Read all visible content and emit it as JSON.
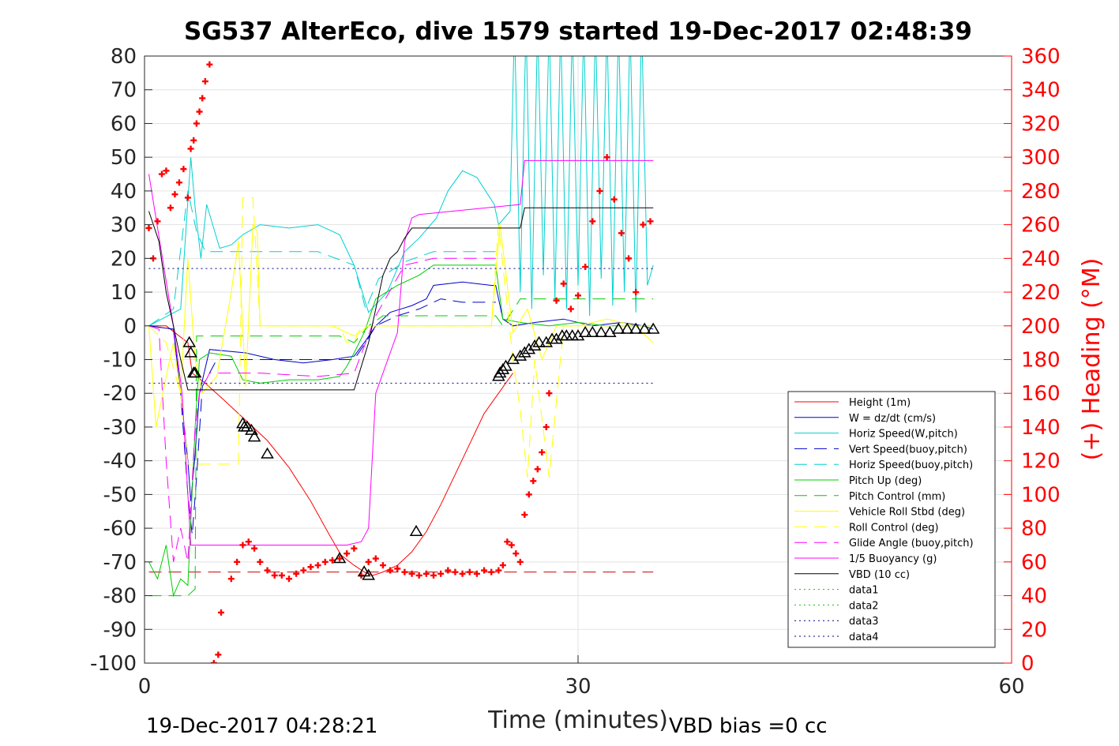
{
  "chart_data": {
    "type": "line",
    "title": "SG537 AlterEco, dive 1579 started 19-Dec-2017 02:48:39",
    "xlabel": "Time (minutes)",
    "ylabel": "",
    "y2label": "(+) Heading (°M)",
    "xlim": [
      0,
      60
    ],
    "ylim": [
      -100,
      80
    ],
    "y2lim": [
      0,
      360
    ],
    "x_ticks": [
      "0",
      "30",
      "60"
    ],
    "y_ticks": [
      "-100",
      "-90",
      "-80",
      "-70",
      "-60",
      "-50",
      "-40",
      "-30",
      "-20",
      "-10",
      "0",
      "10",
      "20",
      "30",
      "40",
      "50",
      "60",
      "70",
      "80"
    ],
    "y2_ticks": [
      "0",
      "20",
      "40",
      "60",
      "80",
      "100",
      "120",
      "140",
      "160",
      "180",
      "200",
      "220",
      "240",
      "260",
      "280",
      "300",
      "320",
      "340",
      "360"
    ],
    "grid": true,
    "legend_position": "bottom-right",
    "footer_left": "19-Dec-2017 04:28:21",
    "footer_right": "VBD bias =0 cc",
    "series": [
      {
        "name": "Height (1m)",
        "color": "#ff0000",
        "style": "solid",
        "x": [
          0.3,
          1.5,
          3.0,
          3.3,
          4.2,
          5.5,
          7.0,
          8.5,
          10.0,
          11.5,
          12.8,
          13.6,
          14.5,
          15.2,
          15.8,
          16.5,
          17.5,
          18.5,
          19.5,
          20.5,
          21.5,
          22.5,
          23.5,
          24.5,
          25.5
        ],
        "y": [
          0,
          0,
          -5,
          -14,
          -17,
          -22,
          -28,
          -34,
          -42,
          -52,
          -62,
          -68,
          -71,
          -73,
          -74,
          -73,
          -71,
          -67,
          -61,
          -53,
          -44,
          -35,
          -26,
          -20,
          -14
        ]
      },
      {
        "name": "W = dz/dt (cm/s)",
        "color": "#0000cc",
        "style": "solid",
        "x": [
          0.3,
          2.0,
          2.5,
          3.0,
          3.2,
          3.5,
          3.8,
          4.5,
          7,
          9,
          11,
          13,
          14.5,
          15.2,
          16.0,
          17.0,
          18.5,
          19.5,
          20.0,
          22.0,
          24.0,
          24.3,
          24.8,
          25.5,
          27,
          29,
          31,
          33,
          34.5,
          35.2
        ],
        "y": [
          0,
          -1,
          -20,
          -40,
          -52,
          -38,
          -20,
          -7,
          -8,
          -10,
          -11,
          -10,
          -9,
          -5,
          0,
          4,
          6,
          8,
          12,
          13,
          12,
          12,
          2,
          0,
          1,
          2,
          0,
          1,
          0,
          -1
        ]
      },
      {
        "name": "Horiz Speed(W,pitch)",
        "color": "#00d0d0",
        "style": "solid",
        "x": [
          0.3,
          2.5,
          3.2,
          3.5,
          3.9,
          4.3,
          5.2,
          6.0,
          6.8,
          8.0,
          10.0,
          12.0,
          13.5,
          14.5,
          15.5,
          16.8,
          18.0,
          19.0,
          20.2,
          21.0,
          22.0,
          23.0,
          24.2,
          24.5,
          25.3,
          25.6,
          26.0,
          26.4,
          26.8,
          27.2,
          27.6,
          28.0,
          28.4,
          28.8,
          29.2,
          29.6,
          30.0,
          30.4,
          30.8,
          31.2,
          31.6,
          32.0,
          32.4,
          32.8,
          33.2,
          33.6,
          34.0,
          34.4,
          34.8,
          35.2
        ],
        "y": [
          0,
          5,
          50,
          35,
          20,
          36,
          23,
          24,
          27,
          30,
          29,
          30,
          27,
          18,
          4,
          10,
          22,
          26,
          32,
          40,
          46,
          44,
          36,
          30,
          34,
          90,
          10,
          90,
          5,
          90,
          15,
          90,
          8,
          90,
          5,
          90,
          12,
          90,
          3,
          90,
          14,
          90,
          6,
          90,
          10,
          90,
          4,
          90,
          12,
          18
        ]
      },
      {
        "name": "Vert Speed(buoy,pitch)",
        "color": "#0000cc",
        "style": "dashed",
        "x": [
          0.3,
          2.0,
          2.5,
          3.0,
          3.3,
          3.6,
          4.0,
          5.0,
          8.0,
          12.0,
          14.5,
          15.3,
          16.0,
          17.5,
          19.0,
          20.5,
          22.0,
          24.0,
          24.3
        ],
        "y": [
          0,
          -1,
          -20,
          -50,
          -62,
          -45,
          -18,
          -10,
          -10,
          -10,
          -10,
          -5,
          0,
          3,
          5,
          8,
          7,
          7,
          7
        ]
      },
      {
        "name": "Horiz Speed(buoy,pitch)",
        "color": "#00d0d0",
        "style": "dashed",
        "x": [
          0.3,
          2.0,
          3.0,
          3.6,
          4.2,
          5.0,
          8.0,
          12.0,
          14.5,
          15.3,
          16.2,
          18.0,
          20.0,
          22.0,
          24.3
        ],
        "y": [
          0,
          5,
          40,
          28,
          22,
          22,
          22,
          22,
          18,
          5,
          14,
          19,
          22,
          22,
          22
        ]
      },
      {
        "name": "Pitch Up (deg)",
        "color": "#00cc00",
        "style": "solid",
        "x": [
          0.3,
          0.9,
          1.5,
          2.0,
          2.5,
          3.0,
          3.5,
          3.8,
          4.5,
          6.0,
          6.8,
          8.0,
          10.0,
          12.0,
          13.5,
          14.0,
          14.5,
          15.2,
          16.0,
          17.5,
          19.0,
          20.0,
          22.0,
          24.3,
          24.8,
          26.0,
          28.0,
          30.0,
          32.0,
          34.0,
          35.2
        ],
        "y": [
          -70,
          -75,
          -65,
          -80,
          -75,
          -77,
          -30,
          -10,
          -8,
          -9,
          -16,
          -17,
          -16,
          -16,
          -15,
          -12,
          -8,
          -2,
          8,
          12,
          15,
          18,
          18,
          18,
          2,
          1,
          0,
          1,
          0,
          0,
          0
        ]
      },
      {
        "name": "Pitch Control (mm)",
        "color": "#00cc00",
        "style": "dashed",
        "x": [
          0.3,
          2.0,
          2.3,
          3.0,
          3.5,
          3.6,
          13.5,
          14.5,
          15.5,
          16.5,
          22.0,
          24.3,
          24.8,
          26.0,
          27.0,
          28.0,
          35.2
        ],
        "y": [
          -80,
          -80,
          -80,
          -80,
          -78,
          -3,
          -3,
          -5,
          0,
          3,
          3,
          3,
          0,
          8,
          8,
          8,
          8
        ]
      },
      {
        "name": "Vehicle Roll Stbd (deg)",
        "color": "#ffff00",
        "style": "solid",
        "x": [
          0.3,
          0.8,
          1.5,
          2.0,
          2.5,
          3.0,
          3.5,
          4.0,
          5.0,
          6.0,
          6.5,
          7.0,
          7.5,
          7.8,
          8.0,
          8.5,
          9.0,
          11.0,
          13.0,
          14.5,
          15.5,
          17.0,
          20.0,
          24.0,
          24.6,
          25.5,
          26.5,
          27.5,
          28.5,
          30.0,
          32.0,
          34.0,
          35.2
        ],
        "y": [
          0,
          -30,
          -15,
          -5,
          -20,
          20,
          -10,
          -20,
          -15,
          10,
          25,
          -18,
          30,
          28,
          0,
          0,
          0,
          0,
          0,
          -3,
          0,
          0,
          0,
          0,
          30,
          -2,
          5,
          -10,
          0,
          0,
          2,
          0,
          -5
        ]
      },
      {
        "name": "Roll Control (deg)",
        "color": "#ffff00",
        "style": "dashed",
        "x": [
          0.3,
          1.5,
          2.5,
          3.0,
          3.5,
          4.0,
          5.0,
          6.5,
          6.8,
          7.5,
          8.0,
          8.5,
          13.5,
          14.0,
          14.5,
          15.0,
          17.0,
          24.0,
          24.5,
          25.5,
          26.0,
          26.5,
          27.0,
          28.0,
          29.0,
          30.0,
          32.0,
          35.2
        ],
        "y": [
          0,
          -5,
          -20,
          -41,
          -41,
          -41,
          -41,
          -41,
          38,
          38,
          0,
          0,
          0,
          -5,
          -5,
          0,
          0,
          0,
          30,
          -10,
          -25,
          -45,
          -10,
          -45,
          0,
          0,
          0,
          0
        ]
      },
      {
        "name": "Glide Angle (buoy,pitch)",
        "color": "#ff00ff",
        "style": "dashed",
        "x": [
          0.3,
          1.0,
          1.5,
          2.0,
          2.5,
          3.0,
          3.5,
          3.8,
          4.5,
          8.0,
          12.0,
          14.5,
          15.3,
          16.0,
          18.0,
          20.0,
          24.3
        ],
        "y": [
          0,
          -1,
          -40,
          -70,
          -60,
          -70,
          -30,
          -20,
          -14,
          -14,
          -15,
          -14,
          -5,
          3,
          18,
          20,
          20
        ]
      },
      {
        "name": "1/5 Buoyancy (g)",
        "color": "#ff00ff",
        "style": "solid",
        "x": [
          0.3,
          2.0,
          2.6,
          3.0,
          3.2,
          13.5,
          14.0,
          15.0,
          15.5,
          16.0,
          17.5,
          18.0,
          18.5,
          19.0,
          26.0,
          26.3,
          35.2
        ],
        "y": [
          45,
          0,
          -20,
          -50,
          -65,
          -65,
          -65,
          -64,
          -60,
          -20,
          -2,
          25,
          32,
          33,
          36,
          49,
          49
        ]
      },
      {
        "name": "VBD (10 cc)",
        "color": "#000000",
        "style": "solid",
        "x": [
          0.3,
          1.0,
          1.5,
          2.0,
          2.5,
          3.0,
          13.5,
          14.5,
          15.5,
          16.0,
          16.5,
          17.0,
          17.5,
          18.0,
          18.5,
          26.0,
          26.3,
          35.2
        ],
        "y": [
          34,
          25,
          10,
          0,
          -10,
          -19,
          -19,
          -19,
          -5,
          5,
          15,
          20,
          22,
          26,
          29,
          29,
          35,
          35
        ]
      },
      {
        "name": "data1",
        "color": "#00cc00",
        "style": "dotted",
        "x": [],
        "y": []
      },
      {
        "name": "data2",
        "color": "#00cc00",
        "style": "dotted",
        "x": [],
        "y": []
      },
      {
        "name": "data3",
        "color": "#000080",
        "style": "dotted",
        "x": [
          0.3,
          35.2
        ],
        "y": [
          17,
          17
        ]
      },
      {
        "name": "data4",
        "color": "#000080",
        "style": "dotted",
        "x": [
          0.3,
          35.2
        ],
        "y": [
          -17,
          -17
        ]
      }
    ],
    "reference_lines": [
      {
        "color": "#cc0000",
        "style": "dashed",
        "x": [
          0.3,
          35.2
        ],
        "y": [
          -73,
          -73
        ]
      }
    ],
    "heading": {
      "axis": "right",
      "color": "#ff0000",
      "marker": "+",
      "x": [
        0.3,
        0.6,
        0.9,
        1.2,
        1.5,
        1.8,
        2.1,
        2.4,
        2.7,
        3.0,
        3.2,
        3.4,
        3.6,
        3.8,
        4.0,
        4.2,
        4.5,
        4.8,
        5.1,
        5.3,
        6.0,
        6.4,
        6.8,
        7.2,
        7.6,
        8.0,
        8.5,
        9.0,
        9.5,
        10.0,
        10.5,
        11.0,
        11.5,
        12.0,
        12.5,
        13.0,
        13.5,
        14.0,
        14.5,
        15.0,
        15.5,
        16.0,
        16.5,
        17.0,
        17.5,
        18.0,
        18.5,
        19.0,
        19.5,
        20.0,
        20.5,
        21.0,
        21.5,
        22.0,
        22.5,
        23.0,
        23.5,
        24.0,
        24.5,
        24.8,
        25.1,
        25.4,
        25.7,
        26.0,
        26.3,
        26.6,
        26.9,
        27.2,
        27.5,
        27.8,
        28.0,
        28.5,
        29.0,
        29.5,
        30.0,
        30.5,
        31.0,
        31.5,
        32.0,
        32.5,
        33.0,
        33.5,
        34.0,
        34.5,
        35.0
      ],
      "y": [
        258,
        240,
        262,
        290,
        292,
        270,
        278,
        285,
        293,
        276,
        305,
        310,
        320,
        327,
        335,
        345,
        355,
        0,
        5,
        30,
        50,
        60,
        70,
        72,
        68,
        60,
        55,
        52,
        52,
        50,
        53,
        55,
        57,
        58,
        60,
        61,
        62,
        65,
        68,
        52,
        60,
        62,
        58,
        55,
        56,
        54,
        53,
        52,
        53,
        52,
        53,
        55,
        54,
        53,
        54,
        53,
        55,
        54,
        55,
        58,
        72,
        70,
        65,
        60,
        88,
        100,
        108,
        115,
        125,
        140,
        160,
        215,
        225,
        210,
        218,
        235,
        262,
        280,
        300,
        275,
        255,
        240,
        220,
        260,
        262
      ]
    },
    "markers": {
      "color": "#000000",
      "x": [
        3.1,
        3.2,
        3.4,
        3.5,
        6.8,
        6.9,
        7.1,
        7.4,
        7.6,
        8.5,
        13.5,
        15.2,
        15.5,
        18.8,
        24.5,
        24.6,
        24.8,
        25.0,
        25.5,
        26.0,
        26.3,
        26.6,
        27.0,
        27.3,
        27.8,
        28.2,
        28.5,
        28.9,
        29.2,
        29.6,
        30.0,
        30.5,
        31.0,
        31.6,
        32.2,
        32.8,
        33.4,
        34.0,
        34.6,
        35.2
      ],
      "y": [
        -5,
        -8,
        -14,
        -14,
        -29,
        -30,
        -30,
        -31,
        -33,
        -38,
        -69,
        -73,
        -74,
        -61,
        -15,
        -14,
        -13,
        -12,
        -10,
        -9,
        -8,
        -7,
        -6,
        -5,
        -5,
        -4,
        -4,
        -3,
        -3,
        -3,
        -3,
        -2,
        -2,
        -2,
        -2,
        -1,
        -1,
        -1,
        -1,
        -1
      ]
    }
  }
}
